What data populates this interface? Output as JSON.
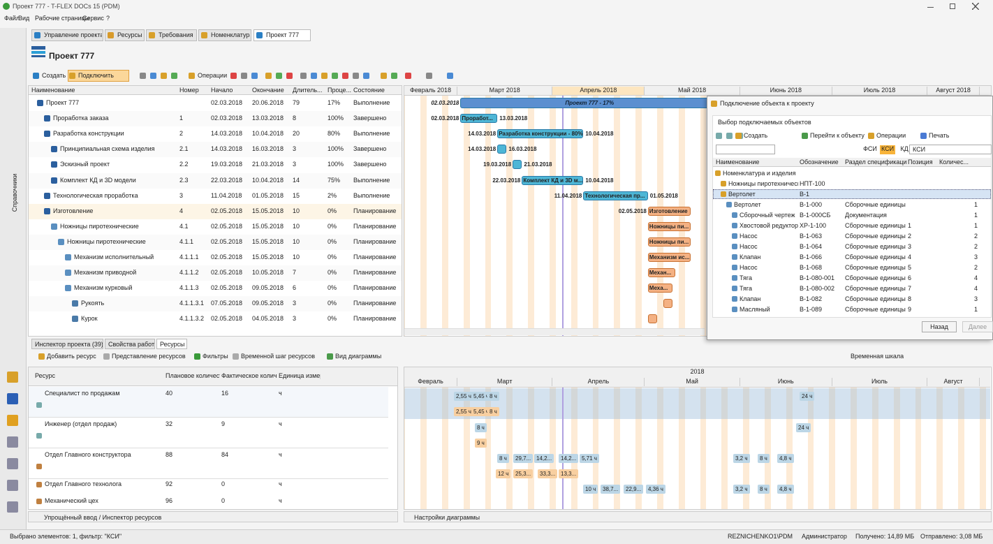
{
  "window": {
    "title": "Проект 777 - T-FLEX DOCs 15 (PDM)"
  },
  "menu": [
    "Файл",
    "Вид",
    "Рабочие страницы",
    "Сервис",
    "?"
  ],
  "tabs": [
    "Управление проектами",
    "Ресурсы",
    "Требования",
    "Номенклатура",
    "Проект 777"
  ],
  "sidebar": {
    "label": "Справочники"
  },
  "project": {
    "title": "Проект 777",
    "toolbar": [
      "Создать",
      "Подключить",
      "Операции"
    ]
  },
  "tasks": {
    "columns": [
      "Наименование",
      "Номер",
      "Начало",
      "Окончание",
      "Длитель...",
      "Проце...",
      "Состояние"
    ],
    "rows": [
      [
        "Проект 777",
        null,
        "02.03.2018",
        "20.06.2018",
        "79",
        "17%",
        "Выполнение"
      ],
      [
        "Проработка заказа",
        "1",
        "02.03.2018",
        "13.03.2018",
        "8",
        "100%",
        "Завершено"
      ],
      [
        "Разработка конструкции",
        "2",
        "14.03.2018",
        "10.04.2018",
        "20",
        "80%",
        "Выполнение"
      ],
      [
        "Принципиальная схема изделия",
        "2.1",
        "14.03.2018",
        "16.03.2018",
        "3",
        "100%",
        "Завершено"
      ],
      [
        "Эскизный проект",
        "2.2",
        "19.03.2018",
        "21.03.2018",
        "3",
        "100%",
        "Завершено"
      ],
      [
        "Комплект КД и 3D модели",
        "2.3",
        "22.03.2018",
        "10.04.2018",
        "14",
        "75%",
        "Выполнение"
      ],
      [
        "Технологическая проработка",
        "3",
        "11.04.2018",
        "01.05.2018",
        "15",
        "2%",
        "Выполнение"
      ],
      [
        "Изготовление",
        "4",
        "02.05.2018",
        "15.05.2018",
        "10",
        "0%",
        "Планирование"
      ],
      [
        "Ножницы пиротехнические",
        "4.1",
        "02.05.2018",
        "15.05.2018",
        "10",
        "0%",
        "Планирование"
      ],
      [
        "Ножницы пиротехнические",
        "4.1.1",
        "02.05.2018",
        "15.05.2018",
        "10",
        "0%",
        "Планирование"
      ],
      [
        "Механизм исполнительный",
        "4.1.1.1",
        "02.05.2018",
        "15.05.2018",
        "10",
        "0%",
        "Планирование"
      ],
      [
        "Механизм приводной",
        "4.1.1.2",
        "02.05.2018",
        "10.05.2018",
        "7",
        "0%",
        "Планирование"
      ],
      [
        "Механизм курковый",
        "4.1.1.3",
        "02.05.2018",
        "09.05.2018",
        "6",
        "0%",
        "Планирование"
      ],
      [
        "Рукоять",
        "4.1.1.3.1",
        "07.05.2018",
        "09.05.2018",
        "3",
        "0%",
        "Планирование"
      ],
      [
        "Курок",
        "4.1.1.3.2",
        "02.05.2018",
        "04.05.2018",
        "3",
        "0%",
        "Планирование"
      ]
    ],
    "bar_text": [
      "Проект 777 - 17%",
      "Проработ...",
      "Разработка конструкции - 80%",
      null,
      null,
      "Комплект КД и 3D м...",
      "Технологическая пр...",
      "Изготовление",
      "Ножницы пи...",
      "Ножницы пи...",
      "Механизм ис...",
      "Механ...",
      "Меха...",
      null,
      null
    ]
  },
  "gantt": {
    "months": [
      "Февраль 2018",
      "Март 2018",
      "Апрель 2018",
      "Май 2018",
      "Июнь 2018",
      "Июль 2018",
      "Август 2018"
    ]
  },
  "dialog": {
    "title": "Подключение объекта к проекту",
    "subtitle": "Выбор подключаемых объектов",
    "toolbar": [
      "Создать",
      "Перейти к объекту",
      "Операции",
      "Печать"
    ],
    "filters": [
      "ФСИ",
      "КСИ",
      "КД"
    ],
    "search": "КСИ",
    "columns": [
      "Наименование",
      "Обозначение",
      "Раздел спецификации",
      "Позиция",
      "Количес..."
    ],
    "rows": [
      [
        "Номенклатура и изделия",
        null,
        null,
        null,
        null
      ],
      [
        "Ножницы пиротехнические",
        "НПТ-100",
        null,
        null,
        null
      ],
      [
        "Вертолет",
        "В-1",
        null,
        null,
        null
      ],
      [
        "Вертолет",
        "В-1-000",
        "Сборочные единицы",
        null,
        "1"
      ],
      [
        "Сборочный чертеж",
        "В-1-000СБ",
        "Документация",
        null,
        "1"
      ],
      [
        "Хвостовой редуктор",
        "ХР-1-100",
        "Сборочные единицы",
        "1",
        "1"
      ],
      [
        "Насос",
        "В-1-063",
        "Сборочные единицы",
        "2",
        "2"
      ],
      [
        "Насос",
        "В-1-064",
        "Сборочные единицы",
        "3",
        "2"
      ],
      [
        "Клапан",
        "В-1-066",
        "Сборочные единицы",
        "4",
        "3"
      ],
      [
        "Насос",
        "В-1-068",
        "Сборочные единицы",
        "5",
        "2"
      ],
      [
        "Тяга",
        "В-1-080-001",
        "Сборочные единицы",
        "6",
        "4"
      ],
      [
        "Тяга",
        "В-1-080-002",
        "Сборочные единицы",
        "7",
        "4"
      ],
      [
        "Клапан",
        "В-1-082",
        "Сборочные единицы",
        "8",
        "3"
      ],
      [
        "Масляный",
        "В-1-089",
        "Сборочные единицы",
        "9",
        "1"
      ]
    ],
    "buttons": [
      "Назад",
      "Далее"
    ]
  },
  "bottom_tabs": [
    "Инспектор проекта (39)",
    "Свойства работы",
    "Ресурсы"
  ],
  "resources": {
    "toolbar": [
      "Добавить ресурс",
      "Представление ресурсов",
      "Фильтры",
      "Временной шаг ресурсов",
      "Вид диаграммы"
    ],
    "timescale": "Временная шкала",
    "columns": [
      "Ресурс",
      "Плановое количество",
      "Фактическое количество",
      "Единица измерения"
    ],
    "rows": [
      [
        "Специалист по продажам",
        "40",
        "16",
        "ч"
      ],
      [
        "Инженер (отдел продаж)",
        "32",
        "9",
        "ч"
      ],
      [
        "Отдел Главного конструктора",
        "88",
        "84",
        "ч"
      ],
      [
        "Отдел Главного технолога",
        "92",
        "0",
        "ч"
      ],
      [
        "Механический цех",
        "96",
        "0",
        "ч"
      ]
    ],
    "year": "2018",
    "months": [
      "Февраль",
      "Март",
      "Апрель",
      "Май",
      "Июнь",
      "Июль",
      "Август"
    ],
    "chips": [
      [
        "2,55 ч",
        "5,45 ч",
        "8 ч",
        "24 ч"
      ],
      [
        "2,55 ч",
        "5,45 ч",
        "8 ч"
      ],
      [
        "8 ч",
        "24 ч"
      ],
      [
        "9 ч"
      ],
      [
        "8 ч",
        "29,7...",
        "14,2...",
        "14,2...",
        "5,71 ч",
        "3,2 ч",
        "8 ч",
        "4,8 ч"
      ],
      [
        "12 ч",
        "25,3...",
        "33,3...",
        "13,3..."
      ],
      [
        "10 ч",
        "38,7...",
        "22,9...",
        "4,36 ч",
        "3,2 ч",
        "8 ч",
        "4,8 ч"
      ]
    ],
    "footer": "Упрощённый ввод / Инспектор ресурсов",
    "chart_footer": "Настройки диаграммы"
  },
  "status": {
    "left": "Выбрано элементов: 1, фильтр: \"КСИ\"",
    "items": [
      "REZNICHENKO1\\PDM",
      "Администратор",
      "Получено: 14,89 МБ",
      "Отправлено: 3,08 МБ"
    ]
  }
}
